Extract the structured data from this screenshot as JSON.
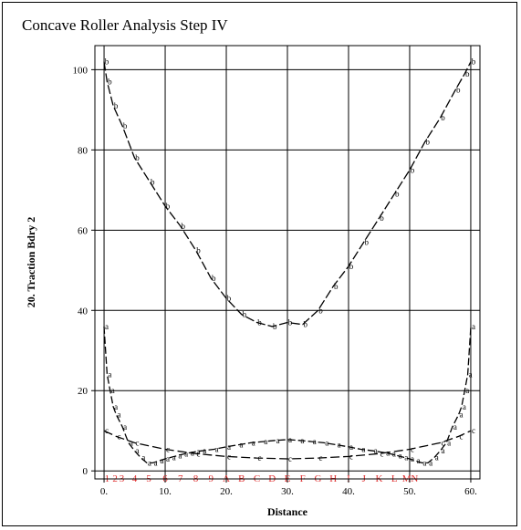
{
  "chart_data": {
    "type": "line",
    "title": "Concave Roller Analysis Step IV",
    "xlabel": "Distance",
    "ylabel": "20. Traction Bdry 2",
    "xlim": [
      -1.5,
      61.5
    ],
    "ylim": [
      -2,
      106
    ],
    "x_ticks": [
      0,
      10,
      20,
      30,
      40,
      50,
      60
    ],
    "x_tick_labels": [
      "0.",
      "10.",
      "20.",
      "30.",
      "40.",
      "50.",
      "60."
    ],
    "y_ticks": [
      0,
      20,
      40,
      60,
      80,
      100
    ],
    "y_tick_labels": [
      "0",
      "20",
      "40",
      "60",
      "80",
      "100"
    ],
    "grid": true,
    "region_labels": [
      "1",
      "2",
      "3",
      "4",
      "5",
      "6",
      "7",
      "8",
      "9",
      "A",
      "B",
      "C",
      "D",
      "E",
      "F",
      "G",
      "H",
      "I",
      "J",
      "K",
      "L",
      "M",
      "N"
    ],
    "region_positions": [
      0.5,
      1.8,
      2.9,
      5.0,
      7.3,
      10.0,
      12.5,
      15.0,
      17.5,
      20.0,
      22.5,
      25.0,
      27.5,
      30.0,
      32.5,
      35.0,
      37.5,
      40.0,
      42.5,
      45.0,
      47.5,
      49.5,
      50.8
    ],
    "series": [
      {
        "marker": "b",
        "x": [
          0,
          0.5,
          1.5,
          3,
          5,
          7.5,
          10,
          12.5,
          15,
          17.5,
          20,
          22.5,
          25,
          27.5,
          30,
          32.5,
          35,
          37.5,
          40,
          42.5,
          45,
          47.5,
          50,
          52.5,
          55,
          57.5,
          59,
          60
        ],
        "values": [
          102,
          97,
          91,
          86,
          78,
          72,
          66,
          61,
          55,
          48,
          43,
          39,
          37,
          36,
          37,
          36.5,
          40,
          46,
          51,
          57,
          63,
          69,
          75,
          82,
          88,
          95,
          99,
          102
        ]
      },
      {
        "marker": "c",
        "x": [
          0,
          2,
          5,
          10,
          15,
          20,
          25,
          30,
          35,
          40,
          45,
          50,
          55,
          58,
          60
        ],
        "values": [
          10,
          8.6,
          7,
          5.4,
          4.3,
          3.6,
          3.2,
          3.0,
          3.2,
          3.6,
          4.3,
          5.4,
          7,
          8.6,
          10
        ]
      },
      {
        "marker": "a",
        "x": [
          0,
          0.5,
          1,
          1.5,
          2,
          3,
          4,
          5,
          6,
          7,
          8,
          9,
          10,
          11,
          12,
          13,
          14,
          15,
          16,
          18,
          20,
          22,
          24,
          26,
          28,
          30,
          32,
          34,
          36,
          38,
          40,
          42,
          44,
          46,
          47,
          48,
          49,
          50,
          51,
          52,
          53,
          54,
          55,
          56,
          57,
          58,
          58.5,
          59,
          59.5,
          60
        ],
        "values": [
          36,
          24,
          20,
          16,
          14,
          11,
          7,
          5,
          3.3,
          2,
          2,
          2.5,
          3,
          3.4,
          3.8,
          4.2,
          4.5,
          4.8,
          5,
          5.4,
          6,
          6.5,
          7,
          7.3,
          7.6,
          7.8,
          7.6,
          7.3,
          7,
          6.5,
          6,
          5.4,
          5,
          4.5,
          4.2,
          3.8,
          3.4,
          3,
          2.5,
          2,
          2,
          3.3,
          5,
          7,
          11,
          14,
          16,
          20,
          24,
          36
        ]
      }
    ]
  }
}
